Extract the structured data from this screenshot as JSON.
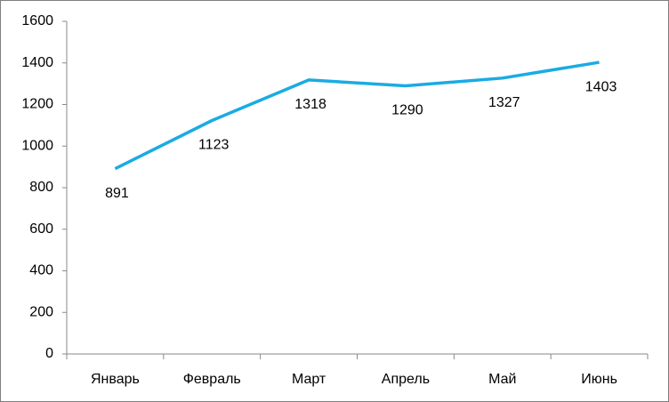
{
  "chart_data": {
    "type": "line",
    "categories": [
      "Январь",
      "Февраль",
      "Март",
      "Апрель",
      "Май",
      "Июнь"
    ],
    "values": [
      891,
      1123,
      1318,
      1290,
      1327,
      1403
    ],
    "color": "#1aabe3",
    "ylim": [
      0,
      1600
    ],
    "yticks": [
      0,
      200,
      400,
      600,
      800,
      1000,
      1200,
      1400,
      1600
    ],
    "grid": false
  }
}
